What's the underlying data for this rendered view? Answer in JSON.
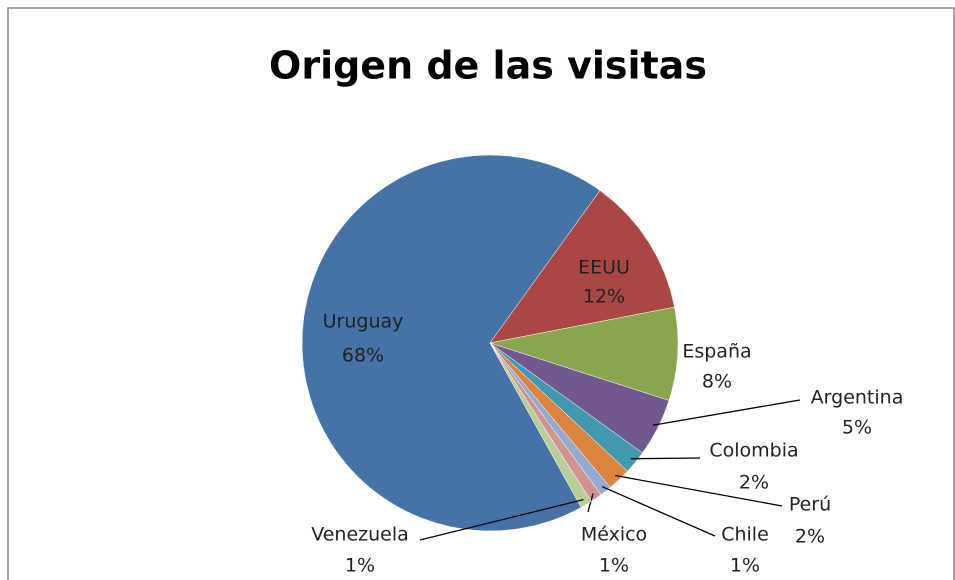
{
  "chart_data": {
    "type": "pie",
    "title": "Origen de las visitas",
    "categories": [
      "Uruguay",
      "EEUU",
      "España",
      "Argentina",
      "Colombia",
      "Perú",
      "Chile",
      "México",
      "Venezuela"
    ],
    "values": [
      68,
      12,
      8,
      5,
      2,
      2,
      1,
      1,
      1
    ],
    "value_labels": [
      "68%",
      "12%",
      "8%",
      "5%",
      "2%",
      "2%",
      "1%",
      "1%",
      "1%"
    ],
    "colors": [
      "#4572A7",
      "#AA4643",
      "#89A54E",
      "#71588F",
      "#4198AF",
      "#DB843D",
      "#93A9CF",
      "#D19392",
      "#B9CD96"
    ]
  }
}
